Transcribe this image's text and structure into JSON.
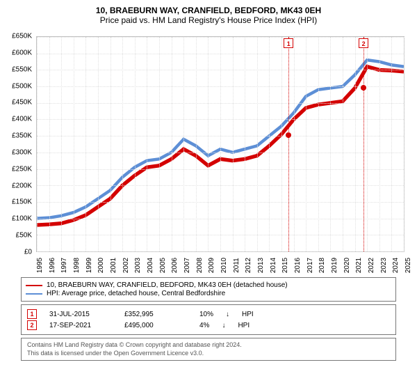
{
  "title": "10, BRAEBURN WAY, CRANFIELD, BEDFORD, MK43 0EH",
  "subtitle": "Price paid vs. HM Land Registry's House Price Index (HPI)",
  "chart": {
    "type": "line",
    "background_color": "#ffffff",
    "grid_color": "#e0e0e0",
    "border_color": "#c0c0c0",
    "y": {
      "min": 0,
      "max": 650000,
      "tick_step": 50000,
      "prefix": "£",
      "suffix": "K"
    },
    "x": {
      "years": [
        1995,
        1996,
        1997,
        1998,
        1999,
        2000,
        2001,
        2002,
        2003,
        2004,
        2005,
        2006,
        2007,
        2008,
        2009,
        2010,
        2011,
        2012,
        2013,
        2014,
        2015,
        2016,
        2017,
        2018,
        2019,
        2020,
        2021,
        2022,
        2023,
        2024,
        2025
      ]
    },
    "series": [
      {
        "name": "property",
        "color": "#d40000",
        "width": 1.8,
        "x": [
          1995,
          1996,
          1997,
          1998,
          1999,
          2000,
          2001,
          2002,
          2003,
          2004,
          2005,
          2006,
          2007,
          2008,
          2009,
          2010,
          2011,
          2012,
          2013,
          2014,
          2015,
          2016,
          2017,
          2018,
          2019,
          2020,
          2021,
          2022,
          2023,
          2024,
          2025
        ],
        "y": [
          80000,
          82000,
          85000,
          95000,
          110000,
          135000,
          160000,
          200000,
          230000,
          255000,
          260000,
          280000,
          310000,
          290000,
          260000,
          280000,
          275000,
          280000,
          290000,
          320000,
          355000,
          400000,
          435000,
          445000,
          450000,
          455000,
          495000,
          560000,
          550000,
          548000,
          545000
        ]
      },
      {
        "name": "hpi",
        "color": "#5d8fd6",
        "width": 1.5,
        "x": [
          1995,
          1996,
          1997,
          1998,
          1999,
          2000,
          2001,
          2002,
          2003,
          2004,
          2005,
          2006,
          2007,
          2008,
          2009,
          2010,
          2011,
          2012,
          2013,
          2014,
          2015,
          2016,
          2017,
          2018,
          2019,
          2020,
          2021,
          2022,
          2023,
          2024,
          2025
        ],
        "y": [
          100000,
          102000,
          108000,
          118000,
          135000,
          160000,
          185000,
          225000,
          255000,
          275000,
          280000,
          300000,
          340000,
          320000,
          290000,
          310000,
          300000,
          310000,
          320000,
          350000,
          380000,
          420000,
          470000,
          490000,
          495000,
          500000,
          535000,
          580000,
          575000,
          565000,
          560000
        ]
      }
    ],
    "markers": [
      {
        "label": "1",
        "color": "#d40000",
        "year": 2015.58,
        "value": 352995
      },
      {
        "label": "2",
        "color": "#d40000",
        "year": 2021.71,
        "value": 495000
      }
    ]
  },
  "legend": {
    "items": [
      {
        "color": "#d40000",
        "label": "10, BRAEBURN WAY, CRANFIELD, BEDFORD, MK43 0EH (detached house)"
      },
      {
        "color": "#5d8fd6",
        "label": "HPI: Average price, detached house, Central Bedfordshire"
      }
    ]
  },
  "transactions": [
    {
      "marker": "1",
      "marker_color": "#d40000",
      "date": "31-JUL-2015",
      "price": "£352,995",
      "pct": "10%",
      "arrow": "↓",
      "rel": "HPI"
    },
    {
      "marker": "2",
      "marker_color": "#d40000",
      "date": "17-SEP-2021",
      "price": "£495,000",
      "pct": "4%",
      "arrow": "↓",
      "rel": "HPI"
    }
  ],
  "footer": {
    "line1": "Contains HM Land Registry data © Crown copyright and database right 2024.",
    "line2": "This data is licensed under the Open Government Licence v3.0."
  }
}
